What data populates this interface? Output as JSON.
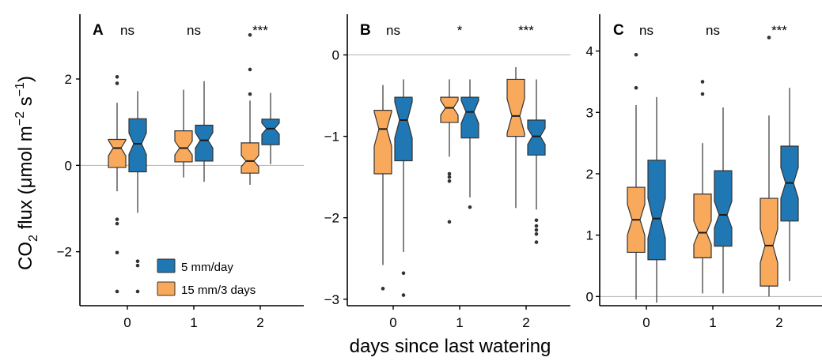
{
  "y_label_main": "CO",
  "y_label_sub": "2",
  "y_label_rest": " flux (μmol m",
  "y_label_sup1": "−2",
  "y_label_mid": " s",
  "y_label_sup2": "−1",
  "y_label_end": ")",
  "x_label": "days since last watering",
  "colors": {
    "treat_a": "#F9A95B",
    "treat_b": "#1F77B4",
    "outline": "#333333",
    "ref_line": "#b3b3b3"
  },
  "legend": [
    {
      "label": "5 mm/day",
      "color": "#1F77B4"
    },
    {
      "label": "15 mm/3 days",
      "color": "#F9A95B"
    }
  ],
  "chart_data": [
    {
      "type": "boxplot",
      "panel": "A",
      "categories": [
        "0",
        "1",
        "2"
      ],
      "significance": [
        "ns",
        "ns",
        "***"
      ],
      "ylim": [
        -3.25,
        3.5
      ],
      "yticks": [
        -2,
        0,
        2
      ],
      "ytick_labels": [
        "−2",
        "0",
        "2"
      ],
      "ref_line": 0,
      "series": [
        {
          "name": "15 mm/3 days",
          "color": "#F9A95B",
          "boxes": [
            {
              "min": -0.6,
              "q1": -0.05,
              "median": 0.4,
              "q3": 0.6,
              "max": 1.45,
              "notch": [
                0.22,
                0.58
              ],
              "outliers": [
                2.05,
                1.9,
                -1.25,
                -1.35,
                -2.02,
                -2.92
              ]
            },
            {
              "min": -0.28,
              "q1": 0.08,
              "median": 0.4,
              "q3": 0.8,
              "max": 1.75,
              "notch": [
                0.24,
                0.56
              ],
              "outliers": []
            },
            {
              "min": -0.45,
              "q1": -0.18,
              "median": 0.1,
              "q3": 0.52,
              "max": 1.5,
              "notch": [
                -0.03,
                0.23
              ],
              "outliers": [
                3.02,
                2.22,
                1.65
              ]
            }
          ]
        },
        {
          "name": "5 mm/day",
          "color": "#1F77B4",
          "boxes": [
            {
              "min": -1.1,
              "q1": -0.15,
              "median": 0.5,
              "q3": 1.08,
              "max": 1.72,
              "notch": [
                0.25,
                0.75
              ],
              "outliers": [
                -2.22,
                -2.32,
                -2.92
              ]
            },
            {
              "min": -0.38,
              "q1": 0.1,
              "median": 0.58,
              "q3": 0.93,
              "max": 1.95,
              "notch": [
                0.4,
                0.76
              ],
              "outliers": []
            },
            {
              "min": 0.03,
              "q1": 0.48,
              "median": 0.85,
              "q3": 1.07,
              "max": 1.68,
              "notch": [
                0.72,
                0.98
              ],
              "outliers": []
            }
          ]
        }
      ]
    },
    {
      "type": "boxplot",
      "panel": "B",
      "categories": [
        "0",
        "1",
        "2"
      ],
      "significance": [
        "ns",
        "*",
        "***"
      ],
      "ylim": [
        -3.08,
        0.5
      ],
      "yticks": [
        -3,
        -2,
        -1,
        0
      ],
      "ytick_labels": [
        "−3",
        "−2",
        "−1",
        "0"
      ],
      "ref_line": 0,
      "series": [
        {
          "name": "15 mm/3 days",
          "color": "#F9A95B",
          "boxes": [
            {
              "min": -2.58,
              "q1": -1.46,
              "median": -0.91,
              "q3": -0.68,
              "max": -0.37,
              "notch": [
                -1.12,
                -0.7
              ],
              "outliers": [
                -2.87
              ]
            },
            {
              "min": -1.25,
              "q1": -0.83,
              "median": -0.65,
              "q3": -0.52,
              "max": -0.3,
              "notch": [
                -0.74,
                -0.56
              ],
              "outliers": [
                -1.46,
                -1.5,
                -1.55,
                -2.05
              ]
            },
            {
              "min": -1.88,
              "q1": -1.0,
              "median": -0.75,
              "q3": -0.3,
              "max": -0.15,
              "notch": [
                -0.96,
                -0.54
              ],
              "outliers": []
            }
          ]
        },
        {
          "name": "5 mm/day",
          "color": "#1F77B4",
          "boxes": [
            {
              "min": -2.42,
              "q1": -1.3,
              "median": -0.8,
              "q3": -0.52,
              "max": -0.3,
              "notch": [
                -1.02,
                -0.58
              ],
              "outliers": [
                -2.68,
                -2.95
              ]
            },
            {
              "min": -1.75,
              "q1": -1.02,
              "median": -0.7,
              "q3": -0.52,
              "max": -0.3,
              "notch": [
                -0.84,
                -0.56
              ],
              "outliers": [
                -1.87
              ]
            },
            {
              "min": -1.9,
              "q1": -1.23,
              "median": -1.0,
              "q3": -0.8,
              "max": -0.3,
              "notch": [
                -1.1,
                -0.9
              ],
              "outliers": [
                -2.03,
                -2.1,
                -2.15,
                -2.2,
                -2.3
              ]
            }
          ]
        }
      ]
    },
    {
      "type": "boxplot",
      "panel": "C",
      "categories": [
        "0",
        "1",
        "2"
      ],
      "significance": [
        "ns",
        "ns",
        "***"
      ],
      "ylim": [
        -0.15,
        4.6
      ],
      "yticks": [
        0,
        1,
        2,
        3,
        4
      ],
      "ytick_labels": [
        "0",
        "1",
        "2",
        "3",
        "4"
      ],
      "ref_line": 0,
      "series": [
        {
          "name": "15 mm/3 days",
          "color": "#F9A95B",
          "boxes": [
            {
              "min": -0.05,
              "q1": 0.72,
              "median": 1.25,
              "q3": 1.78,
              "max": 3.12,
              "notch": [
                1.0,
                1.5
              ],
              "outliers": [
                3.94,
                3.4
              ]
            },
            {
              "min": 0.05,
              "q1": 0.63,
              "median": 1.04,
              "q3": 1.67,
              "max": 2.5,
              "notch": [
                0.85,
                1.23
              ],
              "outliers": [
                3.5,
                3.3
              ]
            },
            {
              "min": 0.0,
              "q1": 0.17,
              "median": 0.83,
              "q3": 1.6,
              "max": 2.95,
              "notch": [
                0.55,
                1.1
              ],
              "outliers": [
                4.22
              ]
            }
          ]
        },
        {
          "name": "5 mm/day",
          "color": "#1F77B4",
          "boxes": [
            {
              "min": -0.1,
              "q1": 0.6,
              "median": 1.27,
              "q3": 2.22,
              "max": 3.25,
              "notch": [
                0.95,
                1.6
              ],
              "outliers": []
            },
            {
              "min": 0.05,
              "q1": 0.82,
              "median": 1.33,
              "q3": 2.05,
              "max": 3.08,
              "notch": [
                1.12,
                1.55
              ],
              "outliers": []
            },
            {
              "min": 0.25,
              "q1": 1.23,
              "median": 1.85,
              "q3": 2.45,
              "max": 3.4,
              "notch": [
                1.6,
                2.1
              ],
              "outliers": []
            }
          ]
        }
      ]
    }
  ]
}
